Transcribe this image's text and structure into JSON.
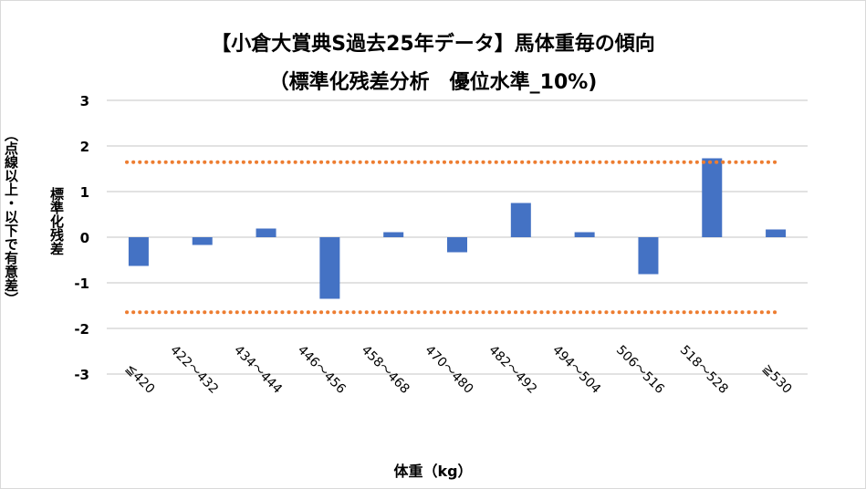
{
  "chart_data": {
    "type": "bar",
    "title": "【小倉大賞典S過去25年データ】馬体重毎の傾向",
    "subtitle": "（標準化残差分析　優位水準_10%)",
    "xlabel": "体重（kg）",
    "ylabel": "標準化残差",
    "ylabel_note": "（点線以上・以下で有意差）",
    "categories": [
      "≦420",
      "422～432",
      "434～444",
      "446～456",
      "458～468",
      "470～480",
      "482～492",
      "494～504",
      "506～516",
      "518～528",
      "≧530"
    ],
    "values": [
      -0.63,
      -0.17,
      0.19,
      -1.35,
      0.11,
      -0.33,
      0.75,
      0.11,
      -0.81,
      1.73,
      0.17
    ],
    "ylim": [
      -3,
      3
    ],
    "yticks": [
      3,
      2,
      1,
      0,
      -1,
      -2,
      -3
    ],
    "thresholds": [
      1.645,
      -1.645
    ],
    "grid": true,
    "colors": {
      "bar": "#4472c4",
      "threshold": "#ed7d31",
      "grid": "#d9d9d9"
    }
  }
}
